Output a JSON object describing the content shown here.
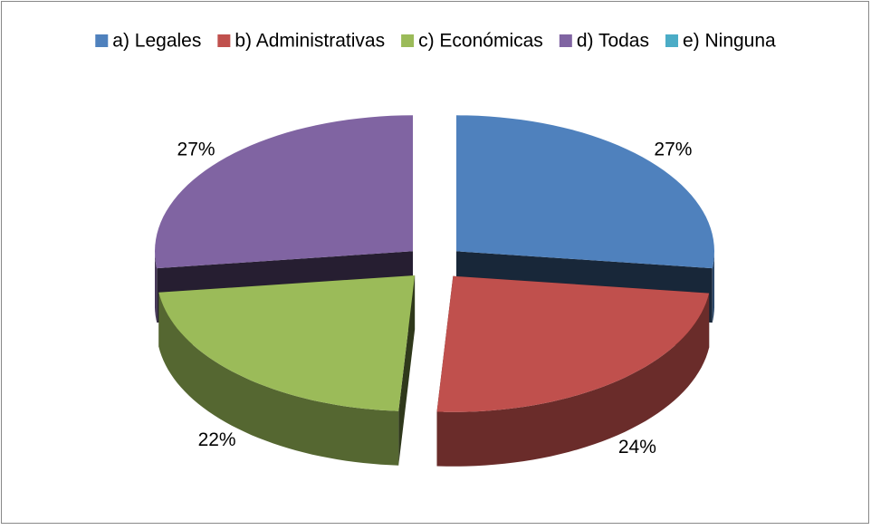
{
  "chart_data": {
    "type": "pie",
    "categories": [
      "a) Legales",
      "b) Administrativas",
      "c) Económicas",
      "d) Todas",
      "e) Ninguna"
    ],
    "values": [
      27,
      24,
      22,
      27,
      0
    ],
    "value_labels": [
      "27%",
      "24%",
      "22%",
      "27%",
      null
    ],
    "colors": [
      "#4f81bd",
      "#c0504d",
      "#9bbb59",
      "#8064a2",
      "#4bacc6"
    ],
    "legend": "top"
  }
}
